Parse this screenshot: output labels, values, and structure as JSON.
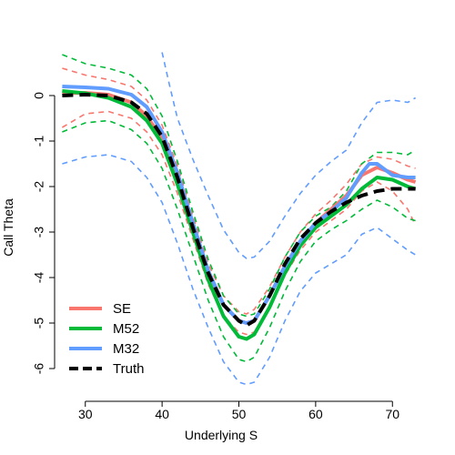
{
  "chart_data": {
    "type": "line",
    "title": "",
    "xlabel": "Underlying S",
    "ylabel": "Call Theta",
    "xlim": [
      26,
      74
    ],
    "ylim": [
      -6.4,
      1.0
    ],
    "xticks": [
      30,
      40,
      50,
      60,
      70
    ],
    "yticks": [
      0,
      -1,
      -2,
      -3,
      -4,
      -5,
      -6
    ],
    "grid": false,
    "legend_position": "bottom-left",
    "legend": [
      {
        "label": "SE",
        "color": "#F8766D",
        "dash": "solid"
      },
      {
        "label": "M52",
        "color": "#00BA38",
        "dash": "solid"
      },
      {
        "label": "M32",
        "color": "#619CFF",
        "dash": "solid"
      },
      {
        "label": "Truth",
        "color": "#000000",
        "dash": "dashed"
      }
    ],
    "series": [
      {
        "name": "Truth",
        "color": "#000000",
        "style": "dashed",
        "x": [
          27,
          30,
          33,
          36,
          38,
          40,
          42,
          44,
          46,
          48,
          50,
          51,
          52,
          54,
          56,
          58,
          60,
          62,
          64,
          66,
          68,
          70,
          72,
          73
        ],
        "y": [
          0,
          0.02,
          0.0,
          -0.15,
          -0.4,
          -0.9,
          -1.8,
          -2.9,
          -3.9,
          -4.6,
          -4.95,
          -5.05,
          -4.95,
          -4.4,
          -3.7,
          -3.15,
          -2.8,
          -2.55,
          -2.35,
          -2.2,
          -2.1,
          -2.05,
          -2.05,
          -2.05
        ]
      },
      {
        "name": "SE",
        "color": "#F8766D",
        "style": "solid",
        "x": [
          27,
          30,
          33,
          36,
          38,
          40,
          42,
          44,
          46,
          48,
          50,
          51,
          52,
          54,
          56,
          58,
          60,
          62,
          64,
          66,
          68,
          70,
          72,
          73
        ],
        "y": [
          0.05,
          0.06,
          0.02,
          -0.15,
          -0.45,
          -0.95,
          -1.85,
          -2.9,
          -3.9,
          -4.6,
          -4.95,
          -5.0,
          -4.95,
          -4.4,
          -3.75,
          -3.2,
          -2.8,
          -2.5,
          -2.2,
          -1.75,
          -1.58,
          -1.7,
          -1.85,
          -1.9
        ]
      },
      {
        "name": "M52",
        "color": "#00BA38",
        "style": "solid",
        "x": [
          27,
          30,
          33,
          36,
          38,
          40,
          42,
          44,
          46,
          48,
          50,
          51,
          52,
          54,
          56,
          58,
          60,
          62,
          64,
          66,
          68,
          70,
          72,
          73
        ],
        "y": [
          0.1,
          0.05,
          -0.05,
          -0.25,
          -0.55,
          -1.05,
          -1.95,
          -3.0,
          -4.05,
          -4.85,
          -5.3,
          -5.35,
          -5.25,
          -4.65,
          -3.9,
          -3.3,
          -2.9,
          -2.65,
          -2.4,
          -2.05,
          -1.8,
          -1.85,
          -2.0,
          -2.05
        ]
      },
      {
        "name": "M32",
        "color": "#619CFF",
        "style": "solid",
        "x": [
          27,
          30,
          33,
          36,
          38,
          40,
          42,
          44,
          46,
          48,
          50,
          51,
          52,
          54,
          56,
          58,
          60,
          62,
          64,
          66,
          67,
          68,
          70,
          72,
          73
        ],
        "y": [
          0.2,
          0.18,
          0.15,
          0.02,
          -0.25,
          -0.8,
          -1.7,
          -2.8,
          -3.85,
          -4.6,
          -4.95,
          -5.0,
          -4.95,
          -4.4,
          -3.75,
          -3.2,
          -2.8,
          -2.55,
          -2.25,
          -1.7,
          -1.5,
          -1.5,
          -1.75,
          -1.8,
          -1.8
        ]
      },
      {
        "name": "SE upper",
        "color": "#F8766D",
        "style": "dashed",
        "x": [
          27,
          30,
          33,
          36,
          38,
          40,
          42,
          44,
          46,
          48,
          50,
          51,
          52,
          54,
          56,
          58,
          60,
          62,
          64,
          66,
          68,
          70,
          72,
          73
        ],
        "y": [
          0.6,
          0.45,
          0.35,
          0.2,
          -0.1,
          -0.65,
          -1.55,
          -2.65,
          -3.7,
          -4.4,
          -4.75,
          -4.8,
          -4.7,
          -4.2,
          -3.55,
          -3.0,
          -2.6,
          -2.3,
          -1.95,
          -1.5,
          -1.35,
          -1.4,
          -1.55,
          -1.6
        ]
      },
      {
        "name": "SE lower",
        "color": "#F8766D",
        "style": "dashed",
        "x": [
          27,
          30,
          33,
          36,
          38,
          40,
          42,
          44,
          46,
          48,
          50,
          51,
          52,
          54,
          56,
          58,
          60,
          62,
          64,
          66,
          68,
          70,
          72,
          73
        ],
        "y": [
          -0.7,
          -0.4,
          -0.35,
          -0.5,
          -0.8,
          -1.3,
          -2.15,
          -3.15,
          -4.15,
          -4.85,
          -5.2,
          -5.25,
          -5.2,
          -4.65,
          -3.95,
          -3.4,
          -3.0,
          -2.75,
          -2.5,
          -2.1,
          -1.9,
          -2.1,
          -2.5,
          -2.85
        ]
      },
      {
        "name": "M52 upper",
        "color": "#00BA38",
        "style": "dashed",
        "x": [
          27,
          30,
          33,
          36,
          38,
          40,
          42,
          44,
          46,
          48,
          50,
          51,
          52,
          54,
          56,
          58,
          60,
          62,
          64,
          66,
          68,
          70,
          72,
          73
        ],
        "y": [
          0.9,
          0.7,
          0.6,
          0.45,
          0.15,
          -0.45,
          -1.45,
          -2.55,
          -3.6,
          -4.4,
          -4.8,
          -4.85,
          -4.8,
          -4.25,
          -3.55,
          -3.0,
          -2.65,
          -2.45,
          -2.1,
          -1.5,
          -1.25,
          -1.25,
          -1.3,
          -1.2
        ]
      },
      {
        "name": "M52 lower",
        "color": "#00BA38",
        "style": "dashed",
        "x": [
          27,
          30,
          33,
          36,
          38,
          40,
          42,
          44,
          46,
          48,
          50,
          51,
          52,
          54,
          56,
          58,
          60,
          62,
          64,
          66,
          68,
          70,
          72,
          73
        ],
        "y": [
          -0.8,
          -0.6,
          -0.55,
          -0.75,
          -1.05,
          -1.6,
          -2.5,
          -3.5,
          -4.5,
          -5.3,
          -5.8,
          -5.85,
          -5.75,
          -5.1,
          -4.3,
          -3.65,
          -3.2,
          -2.95,
          -2.75,
          -2.5,
          -2.3,
          -2.45,
          -2.7,
          -2.75
        ]
      },
      {
        "name": "M32 upper",
        "color": "#619CFF",
        "style": "dashed",
        "x": [
          40,
          41,
          42,
          44,
          46,
          48,
          50,
          51,
          52,
          54,
          56,
          58,
          60,
          62,
          64,
          66,
          68,
          70,
          72,
          73
        ],
        "y": [
          0.95,
          0.2,
          -0.5,
          -1.4,
          -2.2,
          -2.95,
          -3.45,
          -3.58,
          -3.55,
          -3.2,
          -2.65,
          -2.15,
          -1.75,
          -1.45,
          -1.2,
          -0.6,
          -0.15,
          -0.1,
          -0.15,
          -0.05
        ]
      },
      {
        "name": "M32 lower",
        "color": "#619CFF",
        "style": "dashed",
        "x": [
          27,
          30,
          33,
          36,
          38,
          40,
          42,
          44,
          46,
          48,
          50,
          51,
          52,
          54,
          56,
          58,
          60,
          62,
          64,
          66,
          68,
          70,
          72,
          73
        ],
        "y": [
          -1.5,
          -1.35,
          -1.3,
          -1.45,
          -1.8,
          -2.35,
          -3.25,
          -4.25,
          -5.1,
          -5.85,
          -6.3,
          -6.35,
          -6.3,
          -5.75,
          -4.95,
          -4.3,
          -3.9,
          -3.7,
          -3.5,
          -3.05,
          -2.9,
          -3.15,
          -3.4,
          -3.5
        ]
      }
    ]
  }
}
